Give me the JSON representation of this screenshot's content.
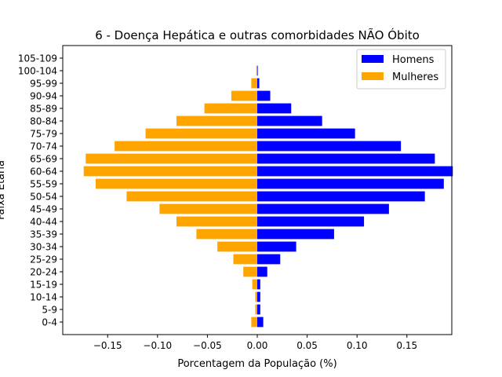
{
  "chart_data": {
    "type": "bar",
    "orientation": "horizontal",
    "title": "6 - Doença Hepática e outras comorbidades NÃO Óbito",
    "xlabel": "Porcentagem da População (%)",
    "ylabel": "Faixa Etária",
    "xlim": [
      -0.195,
      0.195
    ],
    "xticks": [
      -0.15,
      -0.1,
      -0.05,
      0.0,
      0.05,
      0.1,
      0.15
    ],
    "xtick_labels": [
      "−0.15",
      "−0.10",
      "−0.05",
      "0.00",
      "0.05",
      "0.10",
      "0.15"
    ],
    "categories": [
      "0-4",
      "5-9",
      "10-14",
      "15-19",
      "20-24",
      "25-29",
      "30-34",
      "35-39",
      "40-44",
      "45-49",
      "50-54",
      "55-59",
      "60-64",
      "65-69",
      "70-74",
      "75-79",
      "80-84",
      "85-89",
      "90-94",
      "95-99",
      "100-104",
      "105-109"
    ],
    "series": [
      {
        "name": "Homens",
        "color": "#0000ff",
        "values": [
          0.006,
          0.003,
          0.003,
          0.003,
          0.01,
          0.023,
          0.039,
          0.077,
          0.107,
          0.132,
          0.168,
          0.187,
          0.196,
          0.178,
          0.144,
          0.098,
          0.065,
          0.034,
          0.013,
          0.002,
          0.0005,
          0
        ]
      },
      {
        "name": "Mulheres",
        "color": "#ffa500",
        "values": [
          -0.006,
          -0.002,
          -0.002,
          -0.005,
          -0.014,
          -0.024,
          -0.04,
          -0.061,
          -0.081,
          -0.098,
          -0.131,
          -0.162,
          -0.174,
          -0.172,
          -0.143,
          -0.112,
          -0.081,
          -0.053,
          -0.026,
          -0.006,
          -0.001,
          0
        ]
      }
    ],
    "legend_position": "top-right",
    "grid": false
  }
}
